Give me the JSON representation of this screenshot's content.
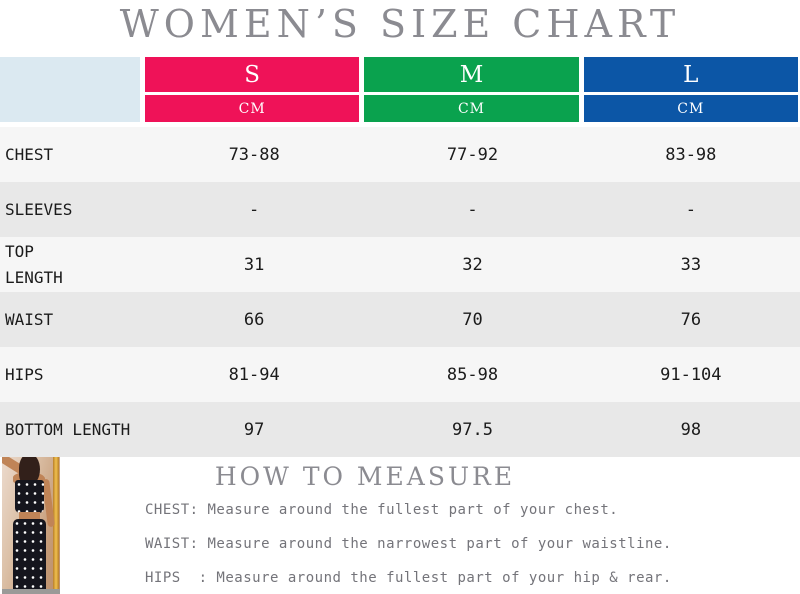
{
  "title": "WOMEN’S SIZE CHART",
  "theme": {
    "pink": "#EF1258",
    "green": "#0AA24E",
    "blue": "#0C56A6",
    "corner_bg": "#DBE9F1",
    "row_light": "#F6F6F6",
    "row_gray": "#E8E8E8",
    "heading_gray": "#8B8B91"
  },
  "table": {
    "sizes": [
      {
        "label": "S",
        "unit": "CM",
        "color": "#EF1258"
      },
      {
        "label": "M",
        "unit": "CM",
        "color": "#0AA24E"
      },
      {
        "label": "L",
        "unit": "CM",
        "color": "#0C56A6"
      }
    ],
    "rows": [
      {
        "label": "CHEST",
        "values": [
          "73-88",
          "77-92",
          "83-98"
        ]
      },
      {
        "label": "SLEEVES",
        "values": [
          "-",
          "-",
          "-"
        ]
      },
      {
        "label": "TOP\nLENGTH",
        "values": [
          "31",
          "32",
          "33"
        ]
      },
      {
        "label": "WAIST",
        "values": [
          "66",
          "70",
          "76"
        ]
      },
      {
        "label": "HIPS",
        "values": [
          "81-94",
          "85-98",
          "91-104"
        ]
      },
      {
        "label": "BOTTOM LENGTH",
        "values": [
          "97",
          "97.5",
          "98"
        ]
      }
    ]
  },
  "how_to_measure": {
    "title": "HOW TO MEASURE",
    "lines": [
      "CHEST: Measure around the fullest part of your chest.",
      "WAIST: Measure around the narrowest part of your waistline.",
      "HIPS  : Measure around the fullest part of your hip & rear."
    ]
  },
  "photo": {
    "description": "model wearing polka-dot tube top and long skirt"
  }
}
